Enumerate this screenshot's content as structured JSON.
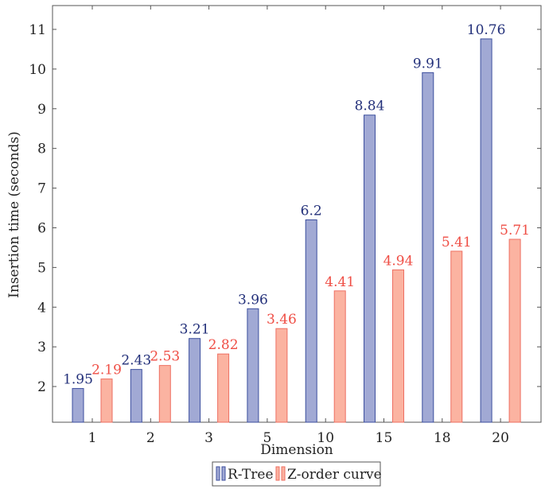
{
  "chart_data": {
    "type": "bar",
    "title": "",
    "xlabel": "Dimension",
    "ylabel": "Insertion time (seconds)",
    "categories": [
      "1",
      "2",
      "3",
      "5",
      "10",
      "15",
      "18",
      "20"
    ],
    "ylim": [
      1.1,
      11.6
    ],
    "yticks": [
      2,
      3,
      4,
      5,
      6,
      7,
      8,
      9,
      10,
      11
    ],
    "grid": false,
    "legend_position": "bottom",
    "series": [
      {
        "name": "R-Tree",
        "values": [
          1.95,
          2.43,
          3.21,
          3.96,
          6.2,
          8.84,
          9.91,
          10.76
        ],
        "labels": [
          "1.95",
          "2.43",
          "3.21",
          "3.96",
          "6.2",
          "8.84",
          "9.91",
          "10.76"
        ],
        "fill": "#a1a9d4",
        "stroke": "#3d4f9e",
        "label_color": "#23307a"
      },
      {
        "name": "Z-order curve",
        "values": [
          2.19,
          2.53,
          2.82,
          3.46,
          4.41,
          4.94,
          5.41,
          5.71
        ],
        "labels": [
          "2.19",
          "2.53",
          "2.82",
          "3.46",
          "4.41",
          "4.94",
          "5.41",
          "5.71"
        ],
        "fill": "#fbb3a1",
        "stroke": "#ee6f62",
        "label_color": "#ef4e45"
      }
    ]
  }
}
